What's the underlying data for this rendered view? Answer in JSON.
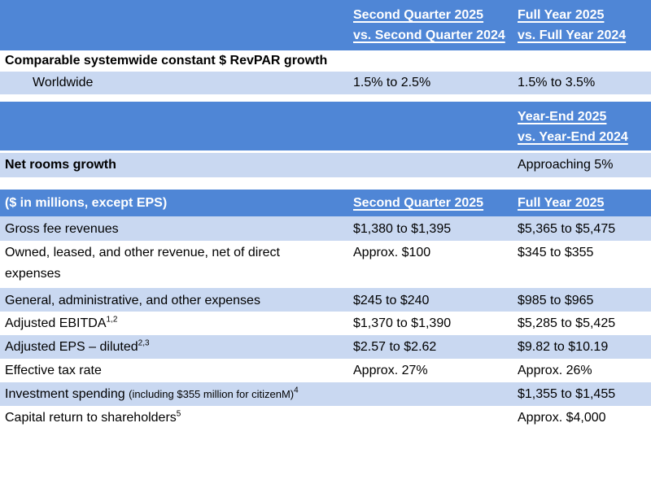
{
  "section1": {
    "col2_line1": "Second Quarter 2025",
    "col2_line2": "vs. Second Quarter 2024",
    "col3_line1": "Full Year 2025",
    "col3_line2": "vs. Full Year 2024",
    "metric": "Comparable systemwide constant $ RevPAR growth",
    "sub_label": "Worldwide",
    "q2": "1.5% to 2.5%",
    "fy": "1.5% to 3.5%"
  },
  "section2": {
    "col3_line1": "Year-End 2025",
    "col3_line2": "vs. Year-End 2024",
    "metric": "Net rooms growth",
    "value": "Approaching 5%"
  },
  "section3": {
    "header_label": "($ in millions, except EPS)",
    "col2": "Second Quarter 2025",
    "col3": "Full Year 2025",
    "rows": [
      {
        "label": "Gross fee revenues",
        "q2": "$1,380 to $1,395",
        "fy": "$5,365 to $5,475"
      },
      {
        "label_line1": "Owned, leased, and other revenue, net of direct",
        "label_line2": "expenses",
        "q2": "Approx. $100",
        "fy": "$345 to $355"
      },
      {
        "label": "General, administrative, and other expenses",
        "q2": "$245 to $240",
        "fy": "$985 to $965"
      },
      {
        "label": "Adjusted EBITDA",
        "sup": "1,2",
        "q2": "$1,370 to $1,390",
        "fy": "$5,285 to $5,425"
      },
      {
        "label": "Adjusted EPS – diluted",
        "sup": "2,3",
        "q2": "$2.57 to $2.62",
        "fy": "$9.82 to $10.19"
      },
      {
        "label": "Effective tax rate",
        "q2": "Approx. 27%",
        "fy": "Approx. 26%"
      },
      {
        "label": "Investment spending",
        "note": "(including $355 million for citizenM)",
        "sup": "4",
        "q2": "",
        "fy": "$1,355 to $1,455"
      },
      {
        "label": "Capital return to shareholders",
        "sup": "5",
        "q2": "",
        "fy": "Approx. $4,000"
      }
    ]
  },
  "colors": {
    "header_blue": "#4f86d6",
    "row_light_blue": "#c9d8f1"
  }
}
